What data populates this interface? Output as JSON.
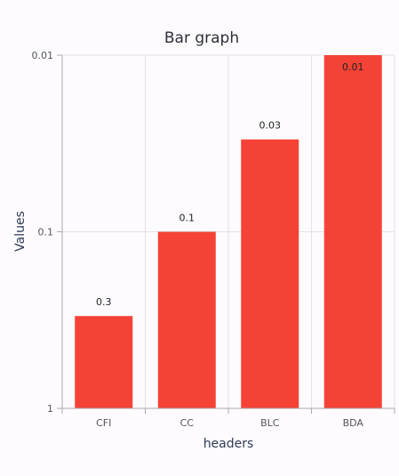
{
  "chart_data": {
    "type": "bar",
    "title": "Bar graph",
    "xlabel": "headers",
    "ylabel": "Values",
    "categories": [
      "CFI",
      "CC",
      "BLC",
      "BDA"
    ],
    "values": [
      0.3,
      0.1,
      0.03,
      0.01
    ],
    "data_labels": [
      "0.3",
      "0.1",
      "0.03",
      "0.01"
    ],
    "y_scale": "log-reversed",
    "ylim": [
      1,
      0.01
    ],
    "y_ticks": [
      1,
      0.1,
      0.01
    ],
    "y_tick_labels": [
      "1",
      "0.1",
      "0.01"
    ],
    "grid": true,
    "bar_color": "#f44336"
  }
}
